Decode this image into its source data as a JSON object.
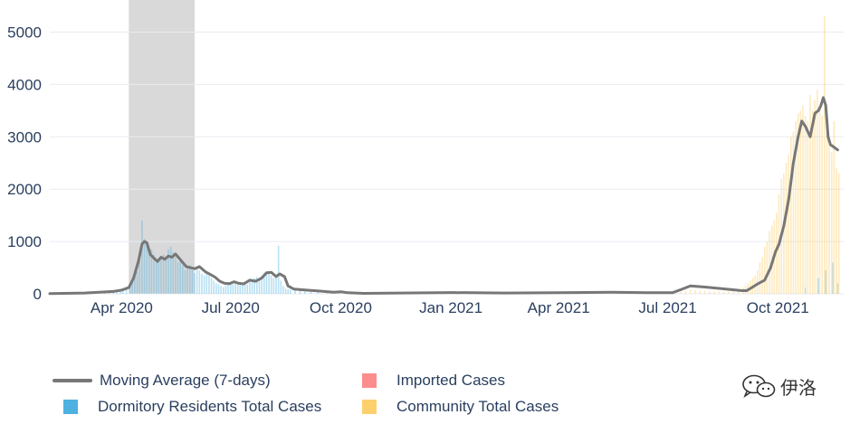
{
  "chart_data": {
    "type": "bar",
    "x_ticks": [
      "Apr 2020",
      "Jul 2020",
      "Oct 2020",
      "Jan 2021",
      "Apr 2021",
      "Jul 2021",
      "Oct 2021"
    ],
    "y_ticks": [
      "0",
      "1000",
      "2000",
      "3000",
      "4000",
      "5000"
    ],
    "ylim": [
      0,
      5500
    ],
    "grid": true,
    "shaded_period": [
      "2020-04-07",
      "2020-06-01"
    ],
    "colors": {
      "moving_average": "#777777",
      "imported": "#fc8d8d",
      "dormitory": "#4eb1e0",
      "community": "#fdd06e",
      "shade": "#d9d9d9"
    },
    "series": [
      {
        "name": "Moving Average (7-days)",
        "points": [
          [
            "2020-02-01",
            5
          ],
          [
            "2020-03-01",
            15
          ],
          [
            "2020-03-25",
            45
          ],
          [
            "2020-04-01",
            70
          ],
          [
            "2020-04-07",
            120
          ],
          [
            "2020-04-11",
            300
          ],
          [
            "2020-04-15",
            620
          ],
          [
            "2020-04-18",
            950
          ],
          [
            "2020-04-20",
            1000
          ],
          [
            "2020-04-22",
            980
          ],
          [
            "2020-04-25",
            750
          ],
          [
            "2020-04-28",
            680
          ],
          [
            "2020-05-01",
            620
          ],
          [
            "2020-05-04",
            700
          ],
          [
            "2020-05-07",
            660
          ],
          [
            "2020-05-10",
            720
          ],
          [
            "2020-05-13",
            700
          ],
          [
            "2020-05-16",
            760
          ],
          [
            "2020-05-19",
            680
          ],
          [
            "2020-05-22",
            600
          ],
          [
            "2020-05-25",
            520
          ],
          [
            "2020-06-01",
            480
          ],
          [
            "2020-06-05",
            520
          ],
          [
            "2020-06-10",
            420
          ],
          [
            "2020-06-14",
            370
          ],
          [
            "2020-06-18",
            320
          ],
          [
            "2020-06-22",
            240
          ],
          [
            "2020-06-26",
            200
          ],
          [
            "2020-06-30",
            195
          ],
          [
            "2020-07-04",
            230
          ],
          [
            "2020-07-08",
            200
          ],
          [
            "2020-07-12",
            190
          ],
          [
            "2020-07-17",
            260
          ],
          [
            "2020-07-22",
            240
          ],
          [
            "2020-07-27",
            300
          ],
          [
            "2020-07-31",
            400
          ],
          [
            "2020-08-04",
            410
          ],
          [
            "2020-08-08",
            330
          ],
          [
            "2020-08-11",
            380
          ],
          [
            "2020-08-15",
            330
          ],
          [
            "2020-08-18",
            150
          ],
          [
            "2020-08-23",
            90
          ],
          [
            "2020-09-01",
            75
          ],
          [
            "2020-09-15",
            50
          ],
          [
            "2020-09-25",
            30
          ],
          [
            "2020-10-01",
            40
          ],
          [
            "2020-10-07",
            20
          ],
          [
            "2020-10-20",
            8
          ],
          [
            "2021-01-01",
            25
          ],
          [
            "2021-02-15",
            15
          ],
          [
            "2021-04-01",
            20
          ],
          [
            "2021-05-15",
            30
          ],
          [
            "2021-06-15",
            20
          ],
          [
            "2021-07-05",
            20
          ],
          [
            "2021-07-12",
            80
          ],
          [
            "2021-07-20",
            150
          ],
          [
            "2021-08-01",
            130
          ],
          [
            "2021-08-15",
            100
          ],
          [
            "2021-09-01",
            60
          ],
          [
            "2021-09-05",
            60
          ],
          [
            "2021-09-10",
            130
          ],
          [
            "2021-09-15",
            200
          ],
          [
            "2021-09-20",
            260
          ],
          [
            "2021-09-25",
            500
          ],
          [
            "2021-09-29",
            800
          ],
          [
            "2021-10-02",
            950
          ],
          [
            "2021-10-06",
            1300
          ],
          [
            "2021-10-10",
            1800
          ],
          [
            "2021-10-14",
            2500
          ],
          [
            "2021-10-18",
            3000
          ],
          [
            "2021-10-21",
            3300
          ],
          [
            "2021-10-24",
            3200
          ],
          [
            "2021-10-28",
            3000
          ],
          [
            "2021-11-01",
            3450
          ],
          [
            "2021-11-04",
            3500
          ],
          [
            "2021-11-06",
            3600
          ],
          [
            "2021-11-08",
            3750
          ],
          [
            "2021-11-10",
            3600
          ],
          [
            "2021-11-12",
            3000
          ],
          [
            "2021-11-14",
            2850
          ],
          [
            "2021-11-17",
            2800
          ],
          [
            "2021-11-20",
            2750
          ]
        ]
      },
      {
        "name": "Dormitory Residents Total Cases",
        "bars": [
          [
            "2020-03-25",
            40
          ],
          [
            "2020-03-28",
            50
          ],
          [
            "2020-03-31",
            60
          ],
          [
            "2020-04-02",
            70
          ],
          [
            "2020-04-05",
            90
          ],
          [
            "2020-04-08",
            150
          ],
          [
            "2020-04-10",
            220
          ],
          [
            "2020-04-12",
            330
          ],
          [
            "2020-04-14",
            420
          ],
          [
            "2020-04-16",
            650
          ],
          [
            "2020-04-18",
            1400
          ],
          [
            "2020-04-20",
            1050
          ],
          [
            "2020-04-22",
            1000
          ],
          [
            "2020-04-24",
            870
          ],
          [
            "2020-04-26",
            850
          ],
          [
            "2020-04-28",
            750
          ],
          [
            "2020-04-30",
            600
          ],
          [
            "2020-05-02",
            650
          ],
          [
            "2020-05-04",
            700
          ],
          [
            "2020-05-06",
            750
          ],
          [
            "2020-05-08",
            650
          ],
          [
            "2020-05-10",
            850
          ],
          [
            "2020-05-12",
            900
          ],
          [
            "2020-05-14",
            800
          ],
          [
            "2020-05-16",
            700
          ],
          [
            "2020-05-18",
            600
          ],
          [
            "2020-05-20",
            620
          ],
          [
            "2020-05-22",
            550
          ],
          [
            "2020-05-24",
            450
          ],
          [
            "2020-05-26",
            500
          ],
          [
            "2020-05-28",
            550
          ],
          [
            "2020-05-30",
            450
          ],
          [
            "2020-06-01",
            400
          ],
          [
            "2020-06-03",
            500
          ],
          [
            "2020-06-05",
            450
          ],
          [
            "2020-06-07",
            380
          ],
          [
            "2020-06-09",
            350
          ],
          [
            "2020-06-11",
            400
          ],
          [
            "2020-06-13",
            350
          ],
          [
            "2020-06-15",
            300
          ],
          [
            "2020-06-17",
            250
          ],
          [
            "2020-06-19",
            200
          ],
          [
            "2020-06-21",
            180
          ],
          [
            "2020-06-23",
            150
          ],
          [
            "2020-06-25",
            130
          ],
          [
            "2020-06-27",
            160
          ],
          [
            "2020-06-29",
            200
          ],
          [
            "2020-07-01",
            210
          ],
          [
            "2020-07-03",
            180
          ],
          [
            "2020-07-05",
            230
          ],
          [
            "2020-07-07",
            190
          ],
          [
            "2020-07-09",
            170
          ],
          [
            "2020-07-11",
            200
          ],
          [
            "2020-07-13",
            240
          ],
          [
            "2020-07-15",
            180
          ],
          [
            "2020-07-17",
            280
          ],
          [
            "2020-07-19",
            250
          ],
          [
            "2020-07-21",
            300
          ],
          [
            "2020-07-23",
            320
          ],
          [
            "2020-07-25",
            280
          ],
          [
            "2020-07-27",
            350
          ],
          [
            "2020-07-29",
            400
          ],
          [
            "2020-07-31",
            420
          ],
          [
            "2020-08-02",
            380
          ],
          [
            "2020-08-04",
            350
          ],
          [
            "2020-08-06",
            300
          ],
          [
            "2020-08-08",
            320
          ],
          [
            "2020-08-10",
            920
          ],
          [
            "2020-08-12",
            250
          ],
          [
            "2020-08-14",
            150
          ],
          [
            "2020-08-16",
            100
          ],
          [
            "2020-08-18",
            90
          ],
          [
            "2020-08-20",
            80
          ],
          [
            "2020-08-24",
            70
          ],
          [
            "2020-08-28",
            60
          ],
          [
            "2020-09-01",
            50
          ],
          [
            "2020-09-06",
            40
          ],
          [
            "2020-09-12",
            30
          ],
          [
            "2020-09-20",
            20
          ],
          [
            "2020-09-30",
            15
          ],
          [
            "2021-10-24",
            120
          ],
          [
            "2021-11-04",
            300
          ],
          [
            "2021-11-10",
            450
          ],
          [
            "2021-11-16",
            600
          ],
          [
            "2021-11-20",
            200
          ]
        ]
      },
      {
        "name": "Imported Cases",
        "bars": [
          [
            "2020-03-18",
            30
          ],
          [
            "2020-03-22",
            40
          ]
        ]
      },
      {
        "name": "Community Total Cases",
        "bars": [
          [
            "2021-07-12",
            40
          ],
          [
            "2021-07-16",
            60
          ],
          [
            "2021-07-20",
            80
          ],
          [
            "2021-07-24",
            70
          ],
          [
            "2021-07-28",
            60
          ],
          [
            "2021-08-01",
            60
          ],
          [
            "2021-08-05",
            55
          ],
          [
            "2021-08-09",
            50
          ],
          [
            "2021-08-13",
            45
          ],
          [
            "2021-08-17",
            40
          ],
          [
            "2021-08-21",
            45
          ],
          [
            "2021-08-25",
            60
          ],
          [
            "2021-08-29",
            80
          ],
          [
            "2021-09-02",
            120
          ],
          [
            "2021-09-04",
            160
          ],
          [
            "2021-09-06",
            200
          ],
          [
            "2021-09-08",
            250
          ],
          [
            "2021-09-10",
            300
          ],
          [
            "2021-09-12",
            350
          ],
          [
            "2021-09-14",
            450
          ],
          [
            "2021-09-16",
            600
          ],
          [
            "2021-09-18",
            700
          ],
          [
            "2021-09-20",
            900
          ],
          [
            "2021-09-22",
            1000
          ],
          [
            "2021-09-24",
            1200
          ],
          [
            "2021-09-26",
            1300
          ],
          [
            "2021-09-28",
            1400
          ],
          [
            "2021-09-30",
            1550
          ],
          [
            "2021-10-02",
            1900
          ],
          [
            "2021-10-04",
            2200
          ],
          [
            "2021-10-06",
            2300
          ],
          [
            "2021-10-08",
            2500
          ],
          [
            "2021-10-10",
            2650
          ],
          [
            "2021-10-12",
            3000
          ],
          [
            "2021-10-14",
            3100
          ],
          [
            "2021-10-16",
            3300
          ],
          [
            "2021-10-18",
            3450
          ],
          [
            "2021-10-20",
            3500
          ],
          [
            "2021-10-22",
            3600
          ],
          [
            "2021-10-24",
            3400
          ],
          [
            "2021-10-26",
            3300
          ],
          [
            "2021-10-28",
            3800
          ],
          [
            "2021-10-30",
            3500
          ],
          [
            "2021-11-01",
            3700
          ],
          [
            "2021-11-03",
            3900
          ],
          [
            "2021-11-05",
            3600
          ],
          [
            "2021-11-07",
            3400
          ],
          [
            "2021-11-09",
            5300
          ],
          [
            "2021-11-11",
            3200
          ],
          [
            "2021-11-13",
            3000
          ],
          [
            "2021-11-15",
            2700
          ],
          [
            "2021-11-17",
            3300
          ],
          [
            "2021-11-19",
            2400
          ],
          [
            "2021-11-21",
            2300
          ]
        ]
      }
    ]
  },
  "legend": {
    "moving_average": "Moving Average (7-days)",
    "imported": "Imported Cases",
    "dormitory": "Dormitory Residents Total Cases",
    "community": "Community Total Cases"
  },
  "watermark": {
    "text": "伊洛",
    "icon": "wechat-icon"
  }
}
